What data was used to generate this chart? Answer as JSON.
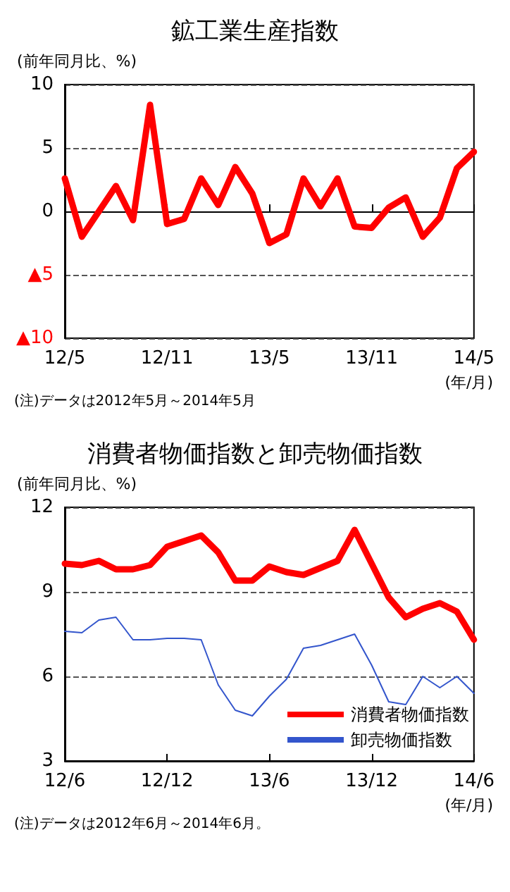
{
  "chart_data": [
    {
      "type": "line",
      "title": "鉱工業生産指数",
      "ylabel": "(前年同月比、%)",
      "categories": [
        "12/5",
        null,
        null,
        null,
        null,
        null,
        "12/11",
        null,
        null,
        null,
        null,
        null,
        "13/5",
        null,
        null,
        null,
        null,
        null,
        "13/11",
        null,
        null,
        null,
        null,
        null,
        "14/5"
      ],
      "series": [
        {
          "color": "#ff0000",
          "values": [
            2.6,
            -2.0,
            0.0,
            2.0,
            -0.7,
            8.4,
            -1.0,
            -0.6,
            2.6,
            0.5,
            3.5,
            1.4,
            -2.5,
            -1.8,
            2.6,
            0.4,
            2.6,
            -1.2,
            -1.3,
            0.3,
            1.1,
            -2.0,
            -0.5,
            3.4,
            4.7
          ]
        }
      ],
      "ylim": [
        -10,
        10
      ],
      "yticks": [
        {
          "value": -10,
          "label": "▲10"
        },
        {
          "value": -5,
          "label": "▲5"
        },
        0,
        5,
        10
      ],
      "grid": "y",
      "legend": false,
      "marker": "none",
      "line_style": "solid",
      "annotations": [
        "(年/月)",
        "(注)データは2012年5月～2014年5月"
      ]
    },
    {
      "type": "line",
      "title": "消費者物価指数と卸売物価指数",
      "ylabel": "(前年同月比、%)",
      "categories": [
        "12/6",
        null,
        null,
        null,
        null,
        null,
        "12/12",
        null,
        null,
        null,
        null,
        null,
        "13/6",
        null,
        null,
        null,
        null,
        null,
        "13/12",
        null,
        null,
        null,
        null,
        null,
        "14/6"
      ],
      "series": [
        {
          "name": "消費者物価指数",
          "color": "#ff0000",
          "values": [
            10.0,
            9.95,
            10.1,
            9.8,
            9.8,
            9.95,
            10.6,
            10.8,
            11.0,
            10.4,
            9.4,
            9.4,
            9.9,
            9.7,
            9.6,
            9.85,
            10.1,
            11.2,
            10.0,
            8.8,
            8.1,
            8.4,
            8.6,
            8.3,
            7.3
          ]
        },
        {
          "name": "卸売物価指数",
          "color": "#3355cc",
          "values": [
            7.6,
            7.55,
            8.0,
            8.1,
            7.3,
            7.3,
            7.35,
            7.35,
            7.3,
            5.7,
            4.8,
            4.6,
            5.3,
            5.9,
            7.0,
            7.1,
            7.3,
            7.5,
            6.4,
            5.1,
            5.0,
            6.0,
            5.6,
            6.0,
            5.4
          ]
        }
      ],
      "ylim": [
        3,
        12
      ],
      "yticks": [
        3,
        6,
        9,
        12
      ],
      "grid": "y",
      "legend": "bottom right",
      "marker": "none",
      "line_style": "solid",
      "annotations": [
        "(年/月)",
        "(注)データは2012年6月～2014年6月。"
      ]
    }
  ]
}
